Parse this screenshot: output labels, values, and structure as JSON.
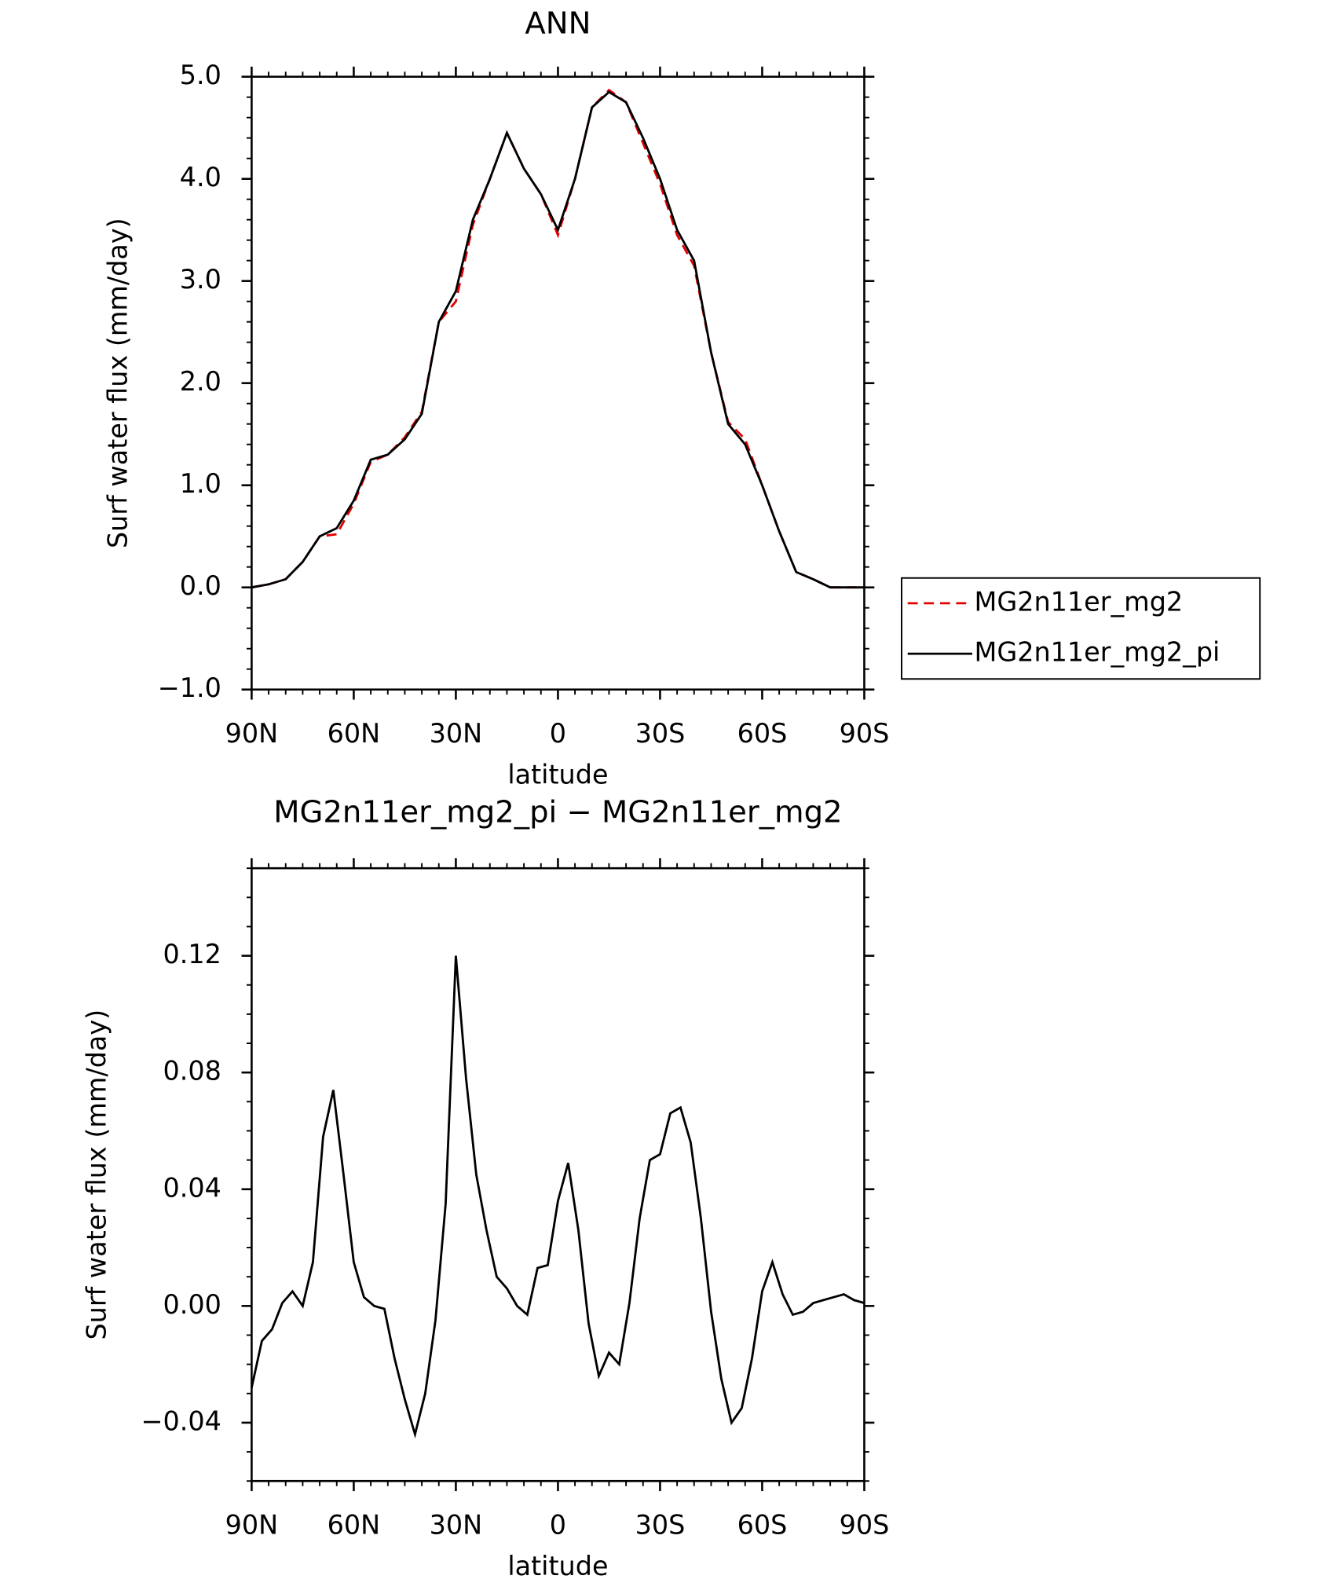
{
  "chart_data": [
    {
      "type": "line",
      "title": "ANN",
      "x_label": "latitude",
      "y_label": "Surf water flux (mm/day)",
      "x": [
        90,
        85,
        80,
        75,
        70,
        65,
        60,
        55,
        50,
        45,
        40,
        35,
        30,
        25,
        20,
        15,
        10,
        5,
        0,
        -5,
        -10,
        -15,
        -20,
        -25,
        -30,
        -35,
        -40,
        -45,
        -50,
        -55,
        -60,
        -65,
        -70,
        -75,
        -80,
        -85,
        -90
      ],
      "series": [
        {
          "name": "MG2n11er_mg2",
          "color": "#e00000",
          "style": "dashed",
          "values": [
            0.0,
            0.03,
            0.08,
            0.25,
            0.5,
            0.52,
            0.82,
            1.23,
            1.3,
            1.47,
            1.72,
            2.6,
            2.8,
            3.55,
            4.0,
            4.45,
            4.1,
            3.85,
            3.45,
            4.0,
            4.7,
            4.87,
            4.75,
            4.35,
            3.95,
            3.45,
            3.15,
            2.3,
            1.62,
            1.45,
            1.0,
            0.55,
            0.15,
            0.08,
            0.0,
            0.0,
            0.0
          ]
        },
        {
          "name": "MG2n11er_mg2_pi",
          "color": "#000000",
          "style": "solid",
          "values": [
            0.0,
            0.03,
            0.08,
            0.25,
            0.5,
            0.58,
            0.85,
            1.25,
            1.3,
            1.45,
            1.7,
            2.6,
            2.9,
            3.6,
            4.0,
            4.45,
            4.1,
            3.85,
            3.5,
            4.0,
            4.7,
            4.85,
            4.75,
            4.4,
            4.0,
            3.5,
            3.2,
            2.3,
            1.6,
            1.4,
            1.0,
            0.55,
            0.15,
            0.08,
            0.0,
            0.0,
            0.0
          ]
        }
      ],
      "xlim": [
        90,
        -90
      ],
      "xticks": [
        {
          "value": 90,
          "label": "90N"
        },
        {
          "value": 60,
          "label": "60N"
        },
        {
          "value": 30,
          "label": "30N"
        },
        0,
        {
          "value": -30,
          "label": "30S"
        },
        {
          "value": -60,
          "label": "60S"
        },
        {
          "value": -90,
          "label": "90S"
        }
      ],
      "ylim": [
        -1,
        5
      ],
      "yticks": [
        {
          "value": -1,
          "label": "−1.0"
        },
        {
          "value": 0,
          "label": "0.0"
        },
        {
          "value": 1,
          "label": "1.0"
        },
        {
          "value": 2,
          "label": "2.0"
        },
        {
          "value": 3,
          "label": "3.0"
        },
        {
          "value": 4,
          "label": "4.0"
        },
        {
          "value": 5,
          "label": "5.0"
        }
      ],
      "legend": "right"
    },
    {
      "type": "line",
      "title": "MG2n11er_mg2_pi − MG2n11er_mg2",
      "x_label": "latitude",
      "y_label": "Surf water flux (mm/day)",
      "x": [
        90,
        87,
        84,
        81,
        78,
        75,
        72,
        69,
        66,
        63,
        60,
        57,
        54,
        51,
        48,
        45,
        42,
        39,
        36,
        33,
        30,
        27,
        24,
        21,
        18,
        15,
        12,
        9,
        6,
        3,
        0,
        -3,
        -6,
        -9,
        -12,
        -15,
        -18,
        -21,
        -24,
        -27,
        -30,
        -33,
        -36,
        -39,
        -42,
        -45,
        -48,
        -51,
        -54,
        -57,
        -60,
        -63,
        -66,
        -69,
        -72,
        -75,
        -78,
        -81,
        -84,
        -87,
        -90
      ],
      "series": [
        {
          "color": "#000000",
          "style": "solid",
          "values": [
            -0.028,
            -0.012,
            -0.008,
            0.001,
            0.005,
            0.0,
            0.015,
            0.058,
            0.074,
            0.045,
            0.015,
            0.003,
            0.0,
            -0.001,
            -0.018,
            -0.032,
            -0.044,
            -0.03,
            -0.005,
            0.035,
            0.12,
            0.078,
            0.045,
            0.026,
            0.01,
            0.006,
            0.0,
            -0.003,
            0.013,
            0.014,
            0.036,
            0.049,
            0.026,
            -0.006,
            -0.024,
            -0.016,
            -0.02,
            0.001,
            0.03,
            0.05,
            0.052,
            0.066,
            0.068,
            0.056,
            0.03,
            -0.002,
            -0.025,
            -0.04,
            -0.035,
            -0.018,
            0.005,
            0.015,
            0.004,
            -0.003,
            -0.002,
            0.001,
            0.002,
            0.003,
            0.004,
            0.002,
            0.001
          ]
        }
      ],
      "xlim": [
        90,
        -90
      ],
      "xticks": [
        {
          "value": 90,
          "label": "90N"
        },
        {
          "value": 60,
          "label": "60N"
        },
        {
          "value": 30,
          "label": "30N"
        },
        0,
        {
          "value": -30,
          "label": "30S"
        },
        {
          "value": -60,
          "label": "60S"
        },
        {
          "value": -90,
          "label": "90S"
        }
      ],
      "ylim": [
        -0.06,
        0.15
      ],
      "yticks": [
        {
          "value": -0.04,
          "label": "−0.04"
        },
        {
          "value": 0,
          "label": "0.00"
        },
        {
          "value": 0.04,
          "label": "0.04"
        },
        {
          "value": 0.08,
          "label": "0.08"
        },
        {
          "value": 0.12,
          "label": "0.12"
        }
      ]
    }
  ]
}
